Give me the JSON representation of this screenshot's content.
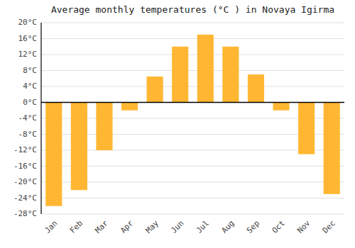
{
  "chart_data": {
    "type": "bar",
    "title": "Average monthly temperatures (°C ) in Novaya Igirma",
    "categories": [
      "Jan",
      "Feb",
      "Mar",
      "Apr",
      "May",
      "Jun",
      "Jul",
      "Aug",
      "Sep",
      "Oct",
      "Nov",
      "Dec"
    ],
    "values": [
      -26,
      -22,
      -12,
      -2,
      6.5,
      14,
      17,
      14,
      7,
      -2,
      -13,
      -23
    ],
    "color": "#FFB733",
    "ylim": [
      -28,
      20
    ],
    "yticks": [
      {
        "value": -28,
        "label": "-28°C"
      },
      {
        "value": -24,
        "label": "-24°C"
      },
      {
        "value": -20,
        "label": "-20°C"
      },
      {
        "value": -16,
        "label": "-16°C"
      },
      {
        "value": -12,
        "label": "-12°C"
      },
      {
        "value": -8,
        "label": "-8°C"
      },
      {
        "value": -4,
        "label": "-4°C"
      },
      {
        "value": 0,
        "label": "0°C"
      },
      {
        "value": 4,
        "label": "4°C"
      },
      {
        "value": 8,
        "label": "8°C"
      },
      {
        "value": 12,
        "label": "12°C"
      },
      {
        "value": 16,
        "label": "16°C"
      },
      {
        "value": 20,
        "label": "20°C"
      }
    ],
    "grid": true
  }
}
